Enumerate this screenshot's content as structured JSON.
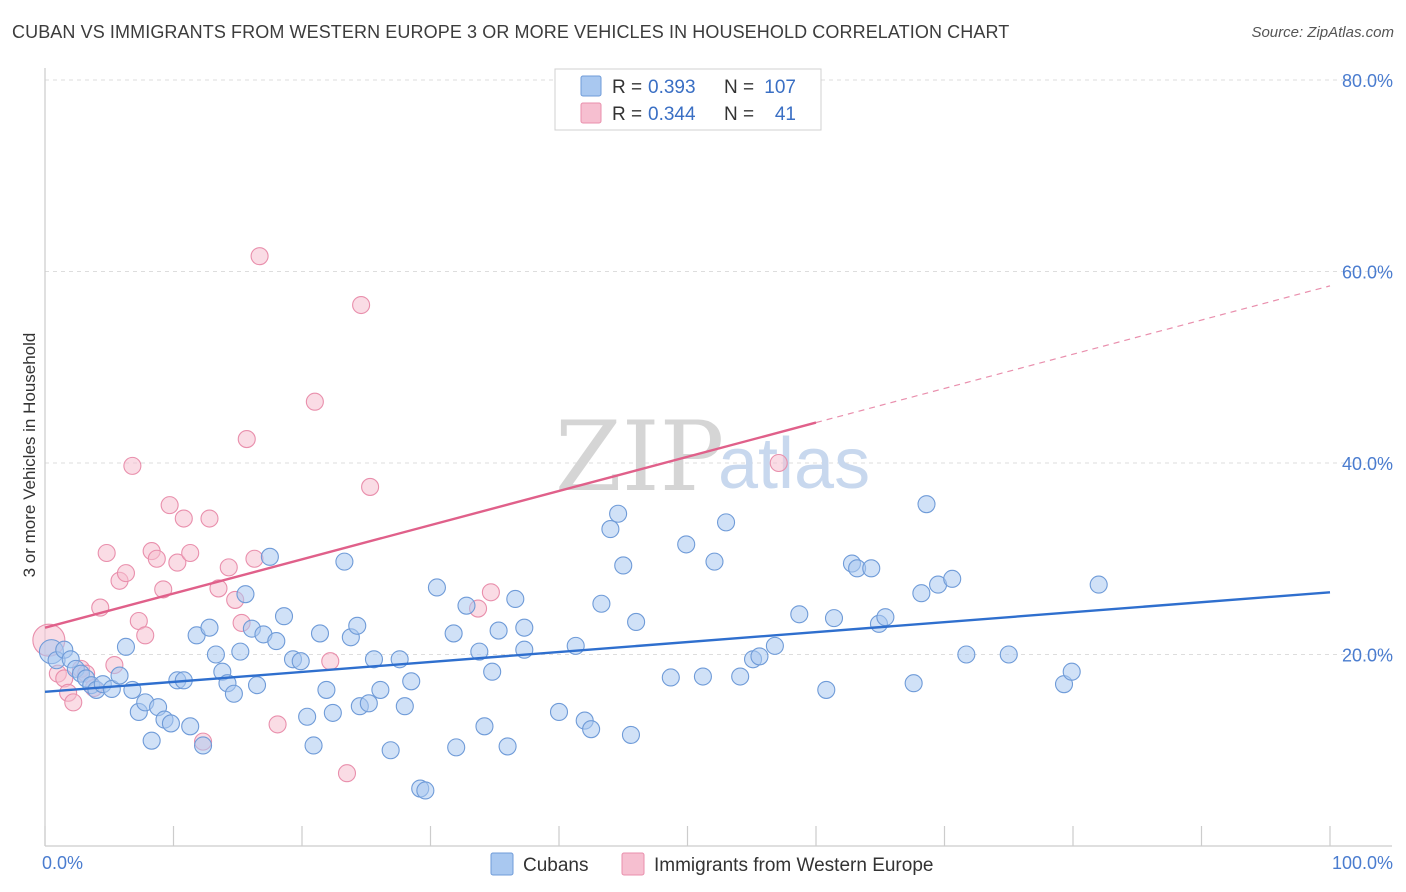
{
  "title": "CUBAN VS IMMIGRANTS FROM WESTERN EUROPE 3 OR MORE VEHICLES IN HOUSEHOLD CORRELATION CHART",
  "source": "Source: ZipAtlas.com",
  "watermark": {
    "zip": "ZIP",
    "atlas": "atlas"
  },
  "colors": {
    "blue_fill": "#a9c8f0",
    "blue_stroke": "#6f9bd8",
    "blue_line": "#2f6fce",
    "pink_fill": "#f6bfd0",
    "pink_stroke": "#e98fac",
    "pink_line": "#e0608a",
    "grid": "#dddddd",
    "tick_text": "#4a7ccf"
  },
  "legend": {
    "rows": [
      {
        "r_label": "R =",
        "r_value": "0.393",
        "n_label": "N =",
        "n_value": "107"
      },
      {
        "r_label": "R =",
        "r_value": "0.344",
        "n_label": "N =",
        "n_value": "41"
      }
    ]
  },
  "bottom_legend": [
    "Cubans",
    "Immigrants from Western Europe"
  ],
  "chart_data": {
    "type": "scatter",
    "title": "CUBAN VS IMMIGRANTS FROM WESTERN EUROPE 3 OR MORE VEHICLES IN HOUSEHOLD CORRELATION CHART",
    "xlabel": "",
    "ylabel": "3 or more Vehicles in Household",
    "xlim": [
      0,
      100
    ],
    "ylim": [
      0,
      80
    ],
    "x_tick_labels": [
      "0.0%",
      "100.0%"
    ],
    "y_ticks": [
      20,
      40,
      60,
      80
    ],
    "y_tick_labels": [
      "20.0%",
      "40.0%",
      "60.0%",
      "80.0%"
    ],
    "grid": true,
    "legend_position": "top-center",
    "series": [
      {
        "name": "Cubans",
        "color": "blue",
        "r": 0.393,
        "n": 107,
        "trend": {
          "x0": 0,
          "y0": 16.1,
          "x1": 100,
          "y1": 26.5,
          "dashed_from": null
        },
        "points": [
          [
            0.5,
            20.3
          ],
          [
            0.9,
            19.4
          ],
          [
            1.5,
            20.5
          ],
          [
            2.0,
            19.5
          ],
          [
            2.4,
            18.5
          ],
          [
            2.8,
            18.0
          ],
          [
            3.2,
            17.5
          ],
          [
            3.6,
            16.8
          ],
          [
            4.0,
            16.3
          ],
          [
            4.5,
            16.9
          ],
          [
            5.2,
            16.4
          ],
          [
            5.8,
            17.8
          ],
          [
            6.3,
            20.8
          ],
          [
            6.8,
            16.3
          ],
          [
            7.3,
            14.0
          ],
          [
            7.8,
            15.0
          ],
          [
            8.3,
            11.0
          ],
          [
            8.8,
            14.5
          ],
          [
            9.3,
            13.2
          ],
          [
            9.8,
            12.8
          ],
          [
            10.3,
            17.3
          ],
          [
            10.8,
            17.3
          ],
          [
            11.3,
            12.5
          ],
          [
            11.8,
            22.0
          ],
          [
            12.3,
            10.5
          ],
          [
            12.8,
            22.8
          ],
          [
            13.3,
            20.0
          ],
          [
            13.8,
            18.2
          ],
          [
            14.2,
            17.0
          ],
          [
            14.7,
            15.9
          ],
          [
            15.2,
            20.3
          ],
          [
            15.6,
            26.3
          ],
          [
            16.1,
            22.7
          ],
          [
            16.5,
            16.8
          ],
          [
            17.0,
            22.1
          ],
          [
            17.5,
            30.2
          ],
          [
            18.0,
            21.4
          ],
          [
            18.6,
            24.0
          ],
          [
            19.3,
            19.5
          ],
          [
            19.9,
            19.3
          ],
          [
            20.4,
            13.5
          ],
          [
            20.9,
            10.5
          ],
          [
            21.4,
            22.2
          ],
          [
            21.9,
            16.3
          ],
          [
            22.4,
            13.9
          ],
          [
            23.3,
            29.7
          ],
          [
            23.8,
            21.8
          ],
          [
            24.3,
            23.0
          ],
          [
            24.5,
            14.6
          ],
          [
            25.2,
            14.9
          ],
          [
            25.6,
            19.5
          ],
          [
            26.1,
            16.3
          ],
          [
            26.9,
            10.0
          ],
          [
            27.6,
            19.5
          ],
          [
            28.0,
            14.6
          ],
          [
            28.5,
            17.2
          ],
          [
            29.2,
            6.0
          ],
          [
            29.6,
            5.8
          ],
          [
            30.5,
            27.0
          ],
          [
            31.8,
            22.2
          ],
          [
            32.0,
            10.3
          ],
          [
            32.8,
            25.1
          ],
          [
            33.8,
            20.3
          ],
          [
            34.2,
            12.5
          ],
          [
            34.8,
            18.2
          ],
          [
            35.3,
            22.5
          ],
          [
            36.0,
            10.4
          ],
          [
            36.6,
            25.8
          ],
          [
            37.3,
            22.8
          ],
          [
            37.3,
            20.5
          ],
          [
            40.0,
            14.0
          ],
          [
            41.3,
            20.9
          ],
          [
            42.0,
            13.1
          ],
          [
            42.5,
            12.2
          ],
          [
            43.3,
            25.3
          ],
          [
            44.0,
            33.1
          ],
          [
            44.6,
            34.7
          ],
          [
            45.0,
            29.3
          ],
          [
            45.6,
            11.6
          ],
          [
            46.0,
            23.4
          ],
          [
            48.7,
            17.6
          ],
          [
            49.9,
            31.5
          ],
          [
            51.2,
            17.7
          ],
          [
            52.1,
            29.7
          ],
          [
            53.0,
            33.8
          ],
          [
            54.1,
            17.7
          ],
          [
            55.1,
            19.5
          ],
          [
            55.6,
            19.8
          ],
          [
            56.8,
            20.9
          ],
          [
            58.7,
            24.2
          ],
          [
            60.8,
            16.3
          ],
          [
            61.4,
            23.8
          ],
          [
            62.8,
            29.5
          ],
          [
            63.2,
            29.0
          ],
          [
            64.3,
            29.0
          ],
          [
            64.9,
            23.2
          ],
          [
            65.4,
            23.9
          ],
          [
            67.6,
            17.0
          ],
          [
            68.2,
            26.4
          ],
          [
            68.6,
            35.7
          ],
          [
            69.5,
            27.3
          ],
          [
            70.6,
            27.9
          ],
          [
            71.7,
            20.0
          ],
          [
            75.0,
            20.0
          ],
          [
            79.3,
            16.9
          ],
          [
            79.9,
            18.2
          ],
          [
            82.0,
            27.3
          ]
        ]
      },
      {
        "name": "Immigrants from Western Europe",
        "color": "pink",
        "r": 0.344,
        "n": 41,
        "trend": {
          "x0": 0,
          "y0": 22.8,
          "x1": 100,
          "y1": 58.5,
          "dashed_from": 60
        },
        "points": [
          [
            0.3,
            21.5
          ],
          [
            1.0,
            18.0
          ],
          [
            1.5,
            17.5
          ],
          [
            1.8,
            16.0
          ],
          [
            2.2,
            15.0
          ],
          [
            2.8,
            18.5
          ],
          [
            3.2,
            18.0
          ],
          [
            3.8,
            16.5
          ],
          [
            4.3,
            24.9
          ],
          [
            4.8,
            30.6
          ],
          [
            5.4,
            18.9
          ],
          [
            5.8,
            27.7
          ],
          [
            6.3,
            28.5
          ],
          [
            6.8,
            39.7
          ],
          [
            7.3,
            23.5
          ],
          [
            7.8,
            22.0
          ],
          [
            8.3,
            30.8
          ],
          [
            8.7,
            30.0
          ],
          [
            9.2,
            26.8
          ],
          [
            9.7,
            35.6
          ],
          [
            10.3,
            29.6
          ],
          [
            10.8,
            34.2
          ],
          [
            11.3,
            30.6
          ],
          [
            12.3,
            10.9
          ],
          [
            12.8,
            34.2
          ],
          [
            13.5,
            26.9
          ],
          [
            14.3,
            29.1
          ],
          [
            14.8,
            25.7
          ],
          [
            15.3,
            23.3
          ],
          [
            16.3,
            30.0
          ],
          [
            16.7,
            61.6
          ],
          [
            18.1,
            12.7
          ],
          [
            21.0,
            46.4
          ],
          [
            22.2,
            19.3
          ],
          [
            23.5,
            7.6
          ],
          [
            24.6,
            56.5
          ],
          [
            25.3,
            37.5
          ],
          [
            33.7,
            24.8
          ],
          [
            34.7,
            26.5
          ],
          [
            57.1,
            40.0
          ],
          [
            15.7,
            42.5
          ]
        ]
      }
    ]
  }
}
